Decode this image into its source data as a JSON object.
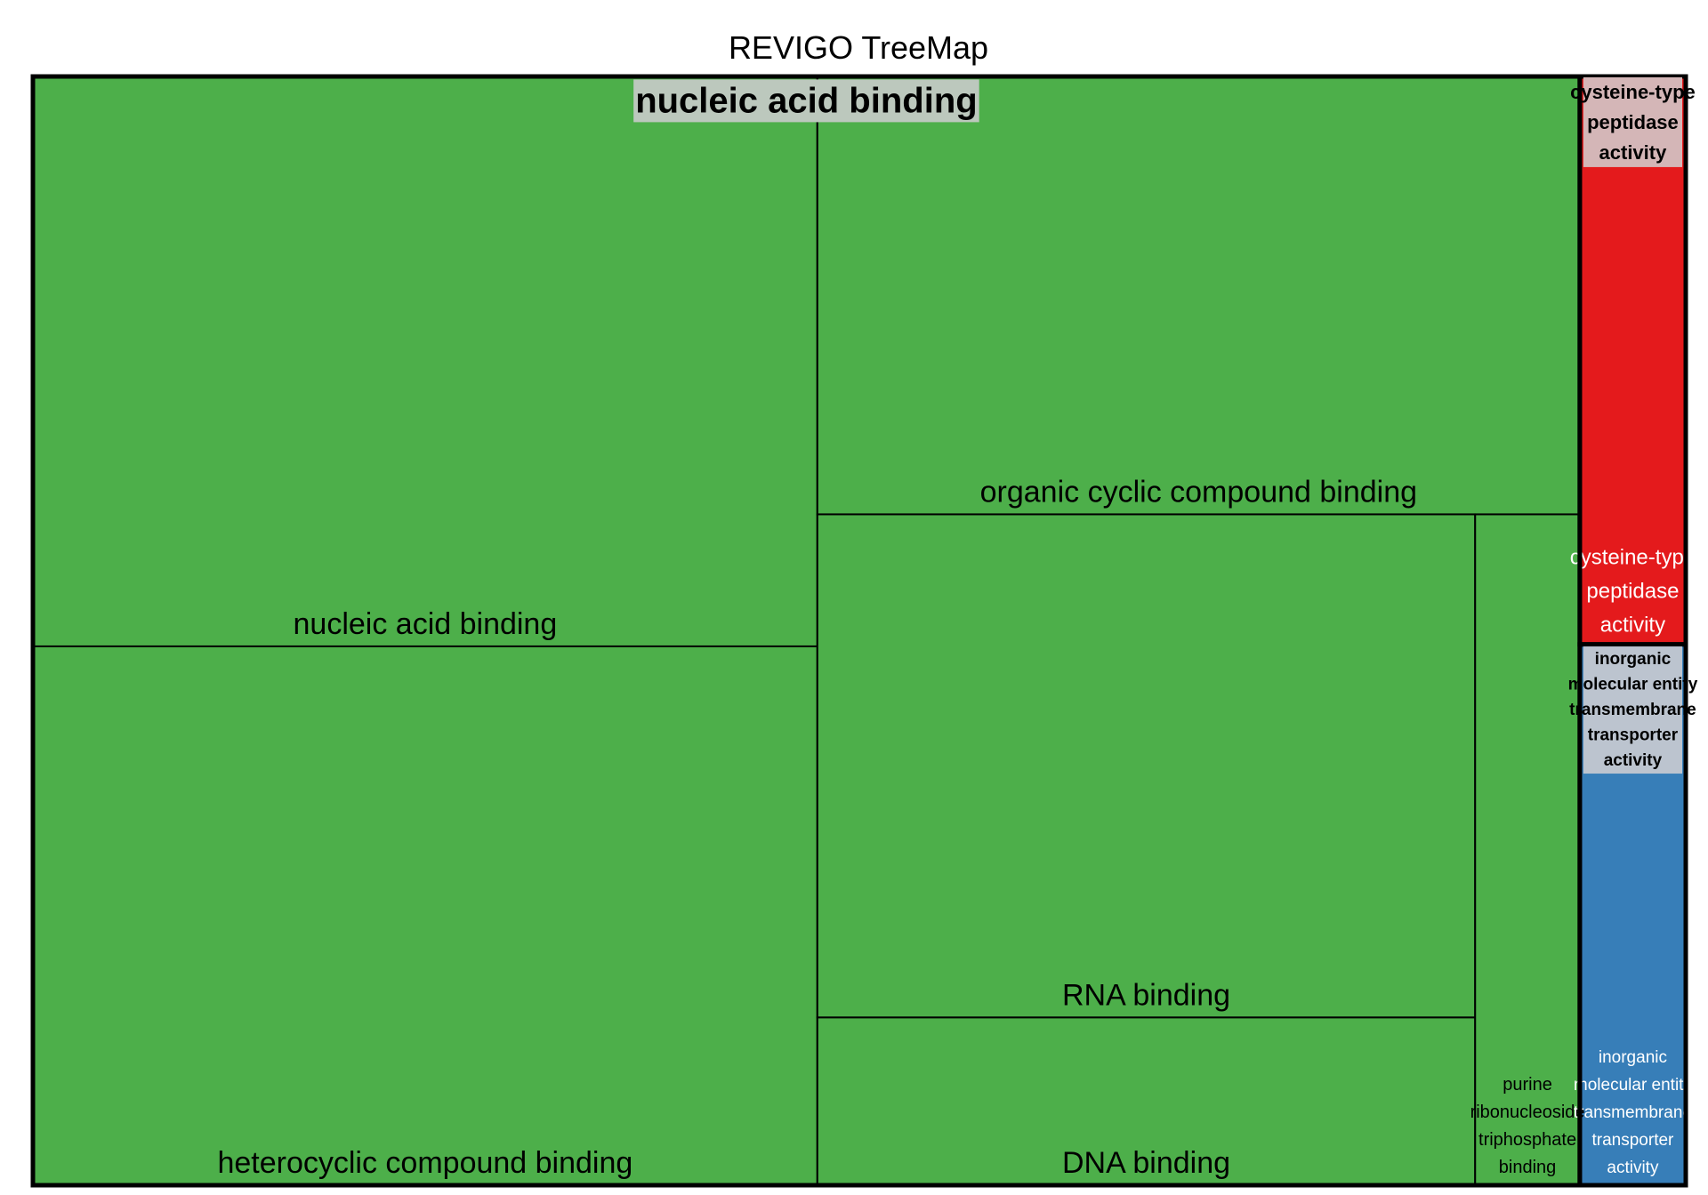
{
  "chart_data": {
    "type": "treemap",
    "title": "REVIGO TreeMap",
    "groups": [
      {
        "name": "nucleic acid binding",
        "color": "#4daf4a",
        "header_label_bg": "#bcc8bd",
        "header_wrap": [
          "nucleic acid binding"
        ],
        "terms": [
          {
            "name": "nucleic acid binding",
            "value": 31.2,
            "wrap": [
              "nucleic acid binding"
            ],
            "text_color": "#000000"
          },
          {
            "name": "heterocyclic compound binding",
            "value": 29.5,
            "wrap": [
              "heterocyclic compound binding"
            ],
            "text_color": "#000000"
          },
          {
            "name": "organic cyclic compound binding",
            "value": 23.3,
            "wrap": [
              "organic cyclic compound binding"
            ],
            "text_color": "#000000"
          },
          {
            "name": "RNA binding",
            "value": 23.1,
            "wrap": [
              "RNA binding"
            ],
            "text_color": "#000000"
          },
          {
            "name": "DNA binding",
            "value": 7.7,
            "wrap": [
              "DNA binding"
            ],
            "text_color": "#000000"
          },
          {
            "name": "purine ribonucleoside triphosphate binding",
            "value": 4.9,
            "wrap": [
              "purine",
              "ribonucleoside",
              "triphosphate",
              "binding"
            ],
            "text_color": "#000000"
          }
        ]
      },
      {
        "name": "cysteine-type peptidase activity",
        "color": "#e41a1c",
        "header_label_bg": "#d4b6b7",
        "header_wrap": [
          "cysteine-type",
          "peptidase",
          "activity"
        ],
        "terms": [
          {
            "name": "cysteine-type peptidase activity",
            "value": 4.2,
            "wrap": [
              "cysteine-type",
              "peptidase",
              "activity"
            ],
            "text_color": "#ffffff"
          }
        ]
      },
      {
        "name": "inorganic molecular entity transmembrane transporter activity",
        "color": "#377eb8",
        "header_label_bg": "#bcc4cf",
        "header_wrap": [
          "inorganic",
          "molecular entity",
          "transmembrane",
          "transporter",
          "activity"
        ],
        "terms": [
          {
            "name": "inorganic molecular entity transmembrane transporter activity",
            "value": 4.0,
            "wrap": [
              "inorganic",
              "molecular entity",
              "transmembrane",
              "transporter",
              "activity"
            ],
            "text_color": "#ffffff"
          }
        ]
      }
    ]
  }
}
